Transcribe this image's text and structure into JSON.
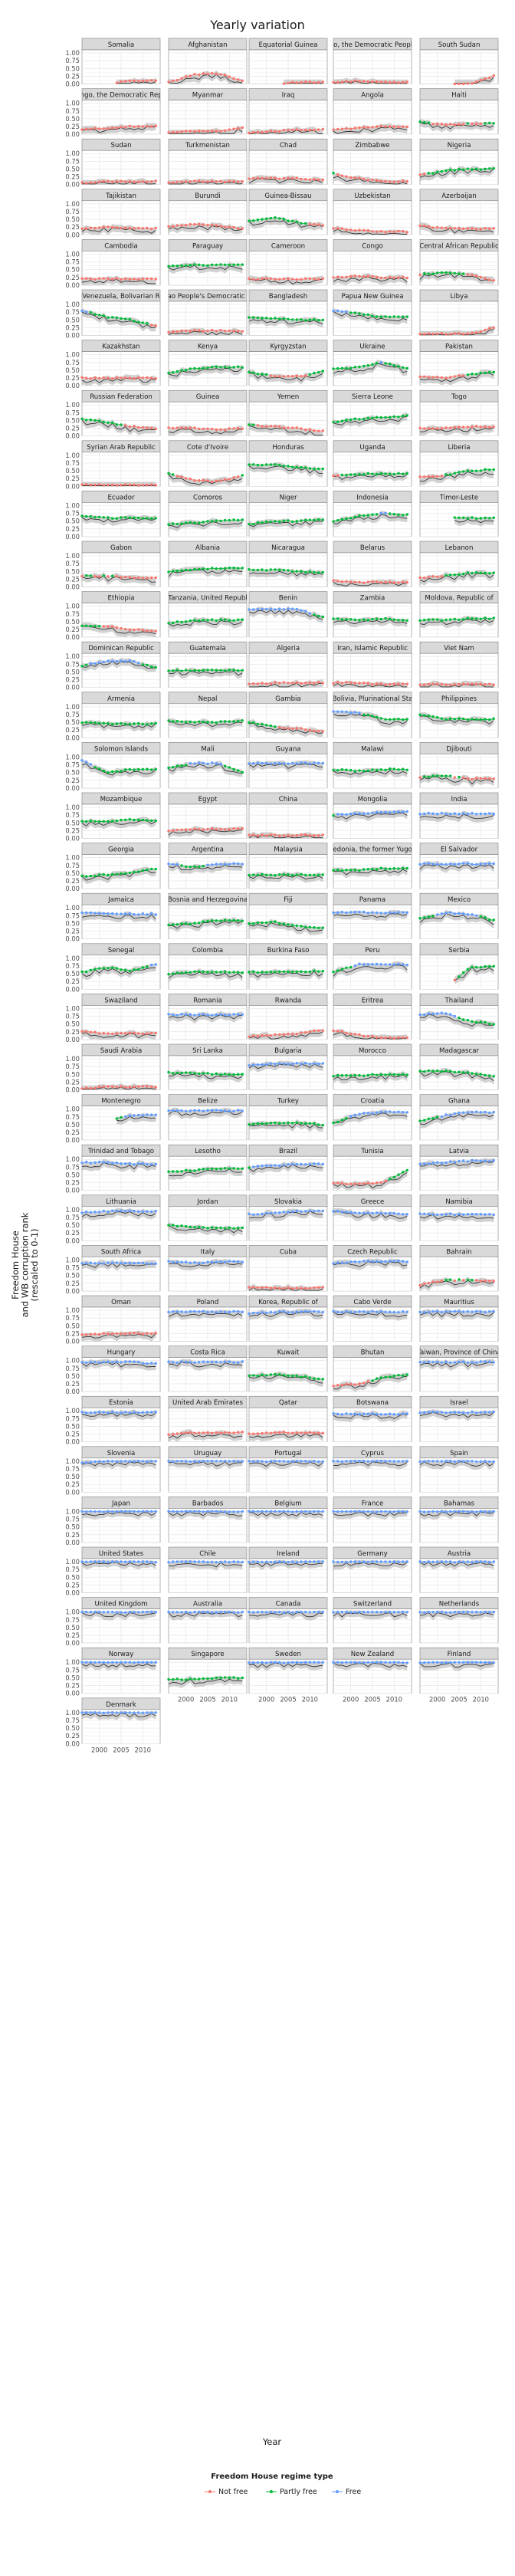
{
  "chart_data": {
    "type": "line",
    "title": "Yearly variation",
    "xlabel": "Year",
    "ylabel": "Freedom House\nand WB corruption rank\n(rescaled to 0-1)",
    "xlim": [
      1996,
      2014
    ],
    "ylim": [
      0,
      1.1
    ],
    "x_ticks": [
      2000,
      2005,
      2010
    ],
    "x_tick_labels": [
      "2000",
      "2005",
      "2010"
    ],
    "y_ticks": [
      0,
      0.25,
      0.5,
      0.75,
      1
    ],
    "y_tick_labels": [
      "0.00",
      "0.25",
      "0.50",
      "0.75",
      "1.00"
    ],
    "legend": {
      "title": "Freedom House regime type",
      "placement": "bottom",
      "entries": [
        {
          "name": "Not free",
          "color": "#f8766d"
        },
        {
          "name": "Partly free",
          "color": "#00ba38"
        },
        {
          "name": "Free",
          "color": "#619cff"
        }
      ]
    },
    "grid": true,
    "country_profiles": {
      "Somalia": [
        0.0,
        0.0,
        0.1,
        0.1
      ],
      "Afghanistan": [
        0.05,
        0.3,
        0.35,
        0.1
      ],
      "Equatorial Guinea": [
        0.0,
        0.0,
        0.05,
        0.05
      ],
      "Congo, the Democratic People's R": [
        0.05,
        0.1,
        0.05,
        0.05
      ],
      "South Sudan": [
        0.0,
        0.0,
        0.0,
        0.25
      ],
      "Congo, the Democratic Repub": [
        0.15,
        0.2,
        0.25,
        0.25
      ],
      "Myanmar": [
        0.05,
        0.1,
        0.1,
        0.2
      ],
      "Iraq": [
        0.05,
        0.1,
        0.15,
        0.15
      ],
      "Angola": [
        0.15,
        0.2,
        0.25,
        0.25
      ],
      "Haiti": [
        0.4,
        0.3,
        0.35,
        0.35
      ],
      "Sudan": [
        0.05,
        0.1,
        0.1,
        0.1
      ],
      "Turkmenistan": [
        0.05,
        0.1,
        0.1,
        0.1
      ],
      "Chad": [
        0.2,
        0.2,
        0.2,
        0.15
      ],
      "Zimbabwe": [
        0.35,
        0.2,
        0.1,
        0.1
      ],
      "Nigeria": [
        0.3,
        0.45,
        0.5,
        0.5
      ],
      "Tajikistan": [
        0.2,
        0.25,
        0.2,
        0.2
      ],
      "Burundi": [
        0.25,
        0.35,
        0.3,
        0.2
      ],
      "Guinea-Bissau": [
        0.45,
        0.55,
        0.4,
        0.3
      ],
      "Uzbekistan": [
        0.2,
        0.15,
        0.1,
        0.1
      ],
      "Azerbaijan": [
        0.3,
        0.2,
        0.2,
        0.2
      ],
      "Cambodia": [
        0.2,
        0.2,
        0.2,
        0.2
      ],
      "Paraguay": [
        0.6,
        0.65,
        0.65,
        0.65
      ],
      "Cameroon": [
        0.2,
        0.2,
        0.2,
        0.2
      ],
      "Congo": [
        0.25,
        0.3,
        0.25,
        0.25
      ],
      "Central African Republic": [
        0.35,
        0.4,
        0.35,
        0.15
      ],
      "Venezuela, Bolivarian R": [
        0.8,
        0.6,
        0.5,
        0.3
      ],
      "Lao People's Democratic R": [
        0.1,
        0.15,
        0.15,
        0.15
      ],
      "Bangladesh": [
        0.6,
        0.55,
        0.5,
        0.5
      ],
      "Papua New Guinea": [
        0.8,
        0.7,
        0.6,
        0.6
      ],
      "Libya": [
        0.05,
        0.05,
        0.05,
        0.25
      ],
      "Kazakhstan": [
        0.25,
        0.25,
        0.25,
        0.25
      ],
      "Kenya": [
        0.4,
        0.55,
        0.6,
        0.6
      ],
      "Kyrgyzstan": [
        0.45,
        0.3,
        0.3,
        0.45
      ],
      "Ukraine": [
        0.55,
        0.6,
        0.75,
        0.55
      ],
      "Pakistan": [
        0.3,
        0.25,
        0.35,
        0.45
      ],
      "Russian Federation": [
        0.55,
        0.45,
        0.3,
        0.25
      ],
      "Guinea": [
        0.25,
        0.25,
        0.2,
        0.25
      ],
      "Yemen": [
        0.35,
        0.3,
        0.25,
        0.15
      ],
      "Sierra Leone": [
        0.45,
        0.55,
        0.6,
        0.65
      ],
      "Togo": [
        0.25,
        0.25,
        0.3,
        0.3
      ],
      "Syrian Arab Republic": [
        0.05,
        0.05,
        0.05,
        0.05
      ],
      "Cote d'Ivoire": [
        0.4,
        0.2,
        0.15,
        0.35
      ],
      "Honduras": [
        0.7,
        0.7,
        0.6,
        0.55
      ],
      "Uganda": [
        0.35,
        0.4,
        0.4,
        0.4
      ],
      "Liberia": [
        0.3,
        0.35,
        0.5,
        0.55
      ],
      "Ecuador": [
        0.65,
        0.6,
        0.6,
        0.6
      ],
      "Comoros": [
        0.4,
        0.45,
        0.5,
        0.55
      ],
      "Niger": [
        0.4,
        0.5,
        0.5,
        0.55
      ],
      "Indonesia": [
        0.5,
        0.65,
        0.75,
        0.7
      ],
      "Timor-Leste": [
        0.0,
        0.6,
        0.6,
        0.6
      ],
      "Gabon": [
        0.35,
        0.35,
        0.3,
        0.3
      ],
      "Albania": [
        0.5,
        0.55,
        0.6,
        0.6
      ],
      "Nicaragua": [
        0.55,
        0.55,
        0.5,
        0.45
      ],
      "Belarus": [
        0.2,
        0.15,
        0.15,
        0.15
      ],
      "Lebanon": [
        0.3,
        0.35,
        0.45,
        0.45
      ],
      "Ethiopia": [
        0.35,
        0.35,
        0.25,
        0.2
      ],
      "Tanzania, United Republ": [
        0.45,
        0.55,
        0.55,
        0.55
      ],
      "Benin": [
        0.9,
        0.9,
        0.9,
        0.65
      ],
      "Zambia": [
        0.6,
        0.55,
        0.6,
        0.55
      ],
      "Moldova, Republic of": [
        0.55,
        0.55,
        0.6,
        0.6
      ],
      "Dominican Republic": [
        0.7,
        0.85,
        0.85,
        0.65
      ],
      "Guatemala": [
        0.55,
        0.55,
        0.55,
        0.55
      ],
      "Algeria": [
        0.1,
        0.15,
        0.15,
        0.15
      ],
      "Iran, Islamic Republic": [
        0.15,
        0.15,
        0.1,
        0.1
      ],
      "Viet Nam": [
        0.1,
        0.1,
        0.1,
        0.1
      ],
      "Armenia": [
        0.5,
        0.45,
        0.45,
        0.45
      ],
      "Nepal": [
        0.55,
        0.5,
        0.5,
        0.55
      ],
      "Gambia": [
        0.5,
        0.35,
        0.3,
        0.2
      ],
      "Bolivia, Plurinational Sta": [
        0.85,
        0.8,
        0.6,
        0.6
      ],
      "Philippines": [
        0.75,
        0.6,
        0.6,
        0.6
      ],
      "Solomon Islands": [
        0.9,
        0.5,
        0.6,
        0.6
      ],
      "Mali": [
        0.65,
        0.8,
        0.8,
        0.5
      ],
      "Guyana": [
        0.8,
        0.8,
        0.8,
        0.8
      ],
      "Malawi": [
        0.6,
        0.55,
        0.6,
        0.6
      ],
      "Djibouti": [
        0.35,
        0.4,
        0.3,
        0.3
      ],
      "Mozambique": [
        0.55,
        0.55,
        0.6,
        0.55
      ],
      "Egypt": [
        0.25,
        0.3,
        0.3,
        0.3
      ],
      "China": [
        0.1,
        0.1,
        0.1,
        0.1
      ],
      "Mongolia": [
        0.75,
        0.8,
        0.85,
        0.85
      ],
      "India": [
        0.8,
        0.8,
        0.8,
        0.8
      ],
      "Georgia": [
        0.4,
        0.45,
        0.5,
        0.65
      ],
      "Argentina": [
        0.8,
        0.7,
        0.8,
        0.8
      ],
      "Malaysia": [
        0.45,
        0.45,
        0.45,
        0.45
      ],
      "Macedonia, the former Yugoslav": [
        0.6,
        0.6,
        0.65,
        0.65
      ],
      "El Salvador": [
        0.8,
        0.8,
        0.8,
        0.8
      ],
      "Jamaica": [
        0.85,
        0.8,
        0.8,
        0.8
      ],
      "Bosnia and Herzegovina": [
        0.45,
        0.5,
        0.6,
        0.6
      ],
      "Fiji": [
        0.5,
        0.55,
        0.4,
        0.35
      ],
      "Panama": [
        0.85,
        0.85,
        0.85,
        0.85
      ],
      "Mexico": [
        0.65,
        0.85,
        0.8,
        0.6
      ],
      "Senegal": [
        0.55,
        0.7,
        0.6,
        0.8
      ],
      "Colombia": [
        0.5,
        0.55,
        0.55,
        0.55
      ],
      "Burkina Faso": [
        0.55,
        0.55,
        0.55,
        0.6
      ],
      "Peru": [
        0.55,
        0.8,
        0.8,
        0.8
      ],
      "Serbia": [
        0.0,
        0.0,
        0.7,
        0.75
      ],
      "Swaziland": [
        0.25,
        0.2,
        0.2,
        0.2
      ],
      "Romania": [
        0.8,
        0.8,
        0.8,
        0.8
      ],
      "Rwanda": [
        0.1,
        0.15,
        0.2,
        0.3
      ],
      "Eritrea": [
        0.3,
        0.15,
        0.05,
        0.05
      ],
      "Thailand": [
        0.8,
        0.85,
        0.6,
        0.5
      ],
      "Saudi Arabia": [
        0.05,
        0.1,
        0.1,
        0.1
      ],
      "Sri Lanka": [
        0.55,
        0.55,
        0.5,
        0.5
      ],
      "Bulgaria": [
        0.8,
        0.85,
        0.85,
        0.85
      ],
      "Morocco": [
        0.45,
        0.45,
        0.5,
        0.5
      ],
      "Madagascar": [
        0.6,
        0.6,
        0.55,
        0.45
      ],
      "Montenegro": [
        0.0,
        0.6,
        0.8,
        0.8
      ],
      "Belize": [
        0.95,
        0.95,
        0.95,
        0.95
      ],
      "Turkey": [
        0.5,
        0.55,
        0.55,
        0.5
      ],
      "Croatia": [
        0.55,
        0.85,
        0.9,
        0.9
      ],
      "Ghana": [
        0.6,
        0.8,
        0.9,
        0.9
      ],
      "Trinidad and Tobago": [
        0.9,
        0.9,
        0.85,
        0.85
      ],
      "Lesotho": [
        0.6,
        0.65,
        0.7,
        0.7
      ],
      "Brazil": [
        0.75,
        0.8,
        0.85,
        0.85
      ],
      "Tunisia": [
        0.25,
        0.2,
        0.25,
        0.65
      ],
      "Latvia": [
        0.85,
        0.9,
        0.95,
        0.95
      ],
      "Lithuania": [
        0.9,
        0.95,
        0.95,
        0.95
      ],
      "Jordan": [
        0.5,
        0.45,
        0.4,
        0.4
      ],
      "Slovakia": [
        0.85,
        0.9,
        0.95,
        0.95
      ],
      "Greece": [
        0.95,
        0.9,
        0.9,
        0.85
      ],
      "Namibia": [
        0.85,
        0.85,
        0.85,
        0.85
      ],
      "South Africa": [
        0.9,
        0.9,
        0.9,
        0.9
      ],
      "Italy": [
        0.95,
        0.9,
        0.95,
        0.95
      ],
      "Cuba": [
        0.1,
        0.1,
        0.1,
        0.1
      ],
      "Czech Republic": [
        0.9,
        0.95,
        0.95,
        0.95
      ],
      "Bahrain": [
        0.2,
        0.35,
        0.35,
        0.3
      ],
      "Oman": [
        0.2,
        0.25,
        0.25,
        0.25
      ],
      "Poland": [
        0.95,
        0.95,
        0.95,
        0.95
      ],
      "Korea, Republic of": [
        0.9,
        0.95,
        0.95,
        0.95
      ],
      "Cabo Verde": [
        0.95,
        0.95,
        0.95,
        0.95
      ],
      "Mauritius": [
        0.95,
        0.95,
        0.95,
        0.95
      ],
      "Hungary": [
        0.95,
        0.95,
        0.95,
        0.9
      ],
      "Costa Rica": [
        0.95,
        0.95,
        0.95,
        0.95
      ],
      "Kuwait": [
        0.5,
        0.55,
        0.5,
        0.4
      ],
      "Bhutan": [
        0.2,
        0.25,
        0.45,
        0.55
      ],
      "Taiwan, Province of China": [
        0.95,
        0.95,
        0.95,
        0.95
      ],
      "Estonia": [
        0.95,
        0.95,
        0.95,
        0.95
      ],
      "United Arab Emirates": [
        0.25,
        0.3,
        0.3,
        0.3
      ],
      "Qatar": [
        0.25,
        0.3,
        0.3,
        0.3
      ],
      "Botswana": [
        0.9,
        0.9,
        0.9,
        0.9
      ],
      "Israel": [
        0.95,
        0.95,
        0.95,
        0.95
      ],
      "Slovenia": [
        0.95,
        1.0,
        1.0,
        1.0
      ],
      "Uruguay": [
        1.0,
        1.0,
        1.0,
        1.0
      ],
      "Portugal": [
        1.0,
        1.0,
        1.0,
        1.0
      ],
      "Cyprus": [
        1.0,
        1.0,
        1.0,
        1.0
      ],
      "Spain": [
        1.0,
        1.0,
        1.0,
        1.0
      ],
      "Japan": [
        1.0,
        1.0,
        1.0,
        1.0
      ],
      "Barbados": [
        1.0,
        1.0,
        1.0,
        1.0
      ],
      "Belgium": [
        1.0,
        1.0,
        1.0,
        1.0
      ],
      "France": [
        1.0,
        1.0,
        1.0,
        1.0
      ],
      "Bahamas": [
        1.0,
        1.0,
        1.0,
        1.0
      ],
      "United States": [
        1.0,
        1.0,
        1.0,
        1.0
      ],
      "Chile": [
        1.0,
        1.0,
        1.0,
        1.0
      ],
      "Ireland": [
        1.0,
        1.0,
        1.0,
        1.0
      ],
      "Germany": [
        1.0,
        1.0,
        1.0,
        1.0
      ],
      "Austria": [
        1.0,
        1.0,
        1.0,
        1.0
      ],
      "United Kingdom": [
        1.0,
        1.0,
        1.0,
        1.0
      ],
      "Australia": [
        1.0,
        1.0,
        1.0,
        1.0
      ],
      "Canada": [
        1.0,
        1.0,
        1.0,
        1.0
      ],
      "Switzerland": [
        1.0,
        1.0,
        1.0,
        1.0
      ],
      "Netherlands": [
        1.0,
        1.0,
        1.0,
        1.0
      ],
      "Norway": [
        1.0,
        1.0,
        1.0,
        1.0
      ],
      "Singapore": [
        0.45,
        0.45,
        0.5,
        0.5
      ],
      "Sweden": [
        1.0,
        1.0,
        1.0,
        1.0
      ],
      "New Zealand": [
        1.0,
        1.0,
        1.0,
        1.0
      ],
      "Finland": [
        1.0,
        1.0,
        1.0,
        1.0
      ],
      "Denmark": [
        1.0,
        1.0,
        1.0,
        1.0
      ]
    }
  }
}
